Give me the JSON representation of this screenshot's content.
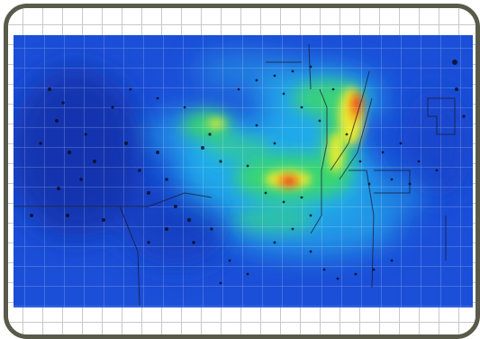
{
  "figure": {
    "frame_color": "#5a5a4a",
    "heat_colors": {
      "base": "#1b4fd8",
      "deep": "#0c2a9e",
      "cyan": "#24c7f0",
      "green": "#3cd96a",
      "yellow": "#f4ee2a",
      "orange": "#f7951c",
      "red": "#e51b1b"
    },
    "icons": [
      "warehouse-floor-plan",
      "heat-overlay"
    ]
  }
}
